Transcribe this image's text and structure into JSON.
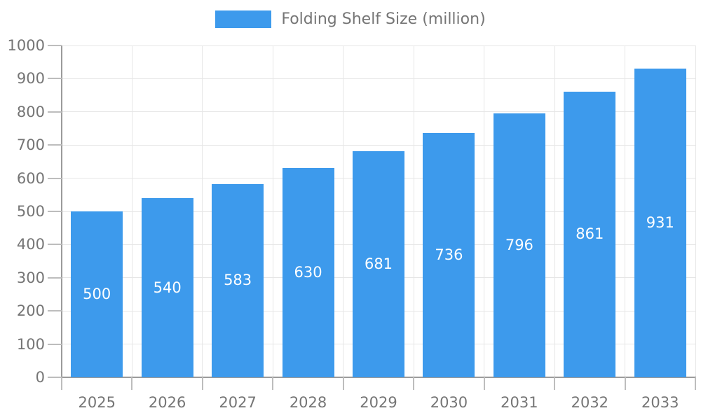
{
  "legend": {
    "items": [
      {
        "label": "Folding Shelf Size (million)",
        "color": "#3D9AEC"
      }
    ]
  },
  "colors": {
    "bar": "#3D9AEC",
    "axis_line": "#9B9B9B",
    "tick": "#BDBDBD",
    "gridline": "#E6E6E6",
    "axis_text": "#757575",
    "value_text": "#FFFFFF",
    "background": "#FFFFFF"
  },
  "chart_data": {
    "type": "bar",
    "title": "",
    "categories": [
      "2025",
      "2026",
      "2027",
      "2028",
      "2029",
      "2030",
      "2031",
      "2032",
      "2033"
    ],
    "series": [
      {
        "name": "Folding Shelf Size (million)",
        "color": "#3D9AEC",
        "values": [
          500,
          540,
          583,
          630,
          681,
          736,
          796,
          861,
          931
        ]
      }
    ],
    "xlabel": "",
    "ylabel": "",
    "ylim": [
      0,
      1000
    ],
    "ytick_step": 100,
    "yticks": [
      0,
      100,
      200,
      300,
      400,
      500,
      600,
      700,
      800,
      900,
      1000
    ],
    "grid": true,
    "legend_position": "top-center",
    "value_labels_position": "inside-center"
  }
}
